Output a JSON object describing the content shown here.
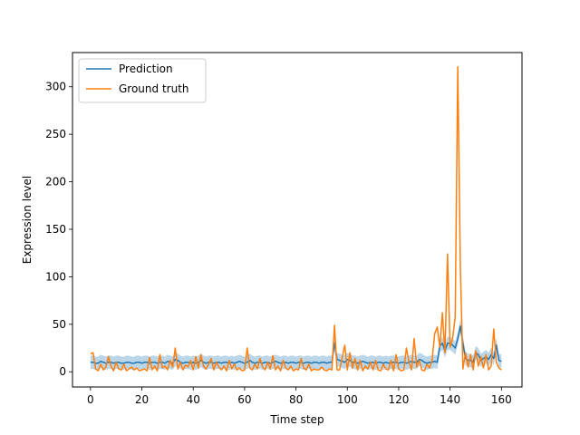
{
  "chart_data": {
    "type": "line",
    "title": "",
    "xlabel": "Time step",
    "ylabel": "Expression level",
    "xlim": [
      -7,
      168
    ],
    "ylim": [
      -16,
      336
    ],
    "xticks": [
      0,
      20,
      40,
      60,
      80,
      100,
      120,
      140,
      160
    ],
    "yticks": [
      0,
      50,
      100,
      150,
      200,
      250,
      300
    ],
    "grid": false,
    "legend": {
      "placement": "top-left",
      "entries": [
        "Prediction",
        "Ground truth"
      ]
    },
    "band": {
      "name": "",
      "color": "#1f77b4",
      "opacity": 0.3
    },
    "x": [
      0,
      1,
      2,
      3,
      4,
      5,
      6,
      7,
      8,
      9,
      10,
      11,
      12,
      13,
      14,
      15,
      16,
      17,
      18,
      19,
      20,
      21,
      22,
      23,
      24,
      25,
      26,
      27,
      28,
      29,
      30,
      31,
      32,
      33,
      34,
      35,
      36,
      37,
      38,
      39,
      40,
      41,
      42,
      43,
      44,
      45,
      46,
      47,
      48,
      49,
      50,
      51,
      52,
      53,
      54,
      55,
      56,
      57,
      58,
      59,
      60,
      61,
      62,
      63,
      64,
      65,
      66,
      67,
      68,
      69,
      70,
      71,
      72,
      73,
      74,
      75,
      76,
      77,
      78,
      79,
      80,
      81,
      82,
      83,
      84,
      85,
      86,
      87,
      88,
      89,
      90,
      91,
      92,
      93,
      94,
      95,
      96,
      97,
      98,
      99,
      100,
      101,
      102,
      103,
      104,
      105,
      106,
      107,
      108,
      109,
      110,
      111,
      112,
      113,
      114,
      115,
      116,
      117,
      118,
      119,
      120,
      121,
      122,
      123,
      124,
      125,
      126,
      127,
      128,
      129,
      130,
      131,
      132,
      133,
      134,
      135,
      136,
      137,
      138,
      139,
      140,
      141,
      142,
      143,
      144,
      145,
      146,
      147,
      148,
      149,
      150,
      151,
      152,
      153,
      154,
      155,
      156,
      157,
      158,
      159,
      160
    ],
    "series": [
      {
        "name": "Prediction",
        "color": "#1f77b4",
        "values": [
          10,
          10,
          9,
          9,
          11,
          10,
          9,
          10,
          10,
          9,
          10,
          10,
          9,
          9,
          10,
          10,
          9,
          9,
          10,
          10,
          9,
          10,
          10,
          9,
          10,
          10,
          9,
          10,
          10,
          9,
          11,
          10,
          9,
          13,
          12,
          10,
          9,
          10,
          10,
          9,
          10,
          9,
          10,
          12,
          10,
          9,
          10,
          10,
          9,
          10,
          10,
          9,
          10,
          10,
          9,
          10,
          9,
          10,
          11,
          10,
          9,
          10,
          12,
          10,
          9,
          10,
          10,
          9,
          10,
          10,
          9,
          10,
          11,
          10,
          9,
          10,
          10,
          9,
          10,
          10,
          9,
          10,
          10,
          9,
          10,
          10,
          9,
          10,
          10,
          9,
          10,
          10,
          9,
          10,
          10,
          30,
          13,
          12,
          11,
          10,
          13,
          12,
          10,
          10,
          9,
          10,
          11,
          10,
          9,
          10,
          10,
          9,
          10,
          10,
          9,
          10,
          9,
          10,
          10,
          10,
          9,
          10,
          10,
          9,
          10,
          11,
          10,
          10,
          13,
          12,
          10,
          9,
          10,
          10,
          11,
          10,
          27,
          30,
          22,
          30,
          30,
          28,
          25,
          35,
          48,
          30,
          14,
          12,
          12,
          10,
          20,
          18,
          12,
          14,
          16,
          13,
          18,
          14,
          28,
          12,
          11
        ],
        "upper": [
          17,
          17,
          16,
          16,
          18,
          17,
          16,
          17,
          17,
          16,
          17,
          17,
          16,
          16,
          17,
          17,
          16,
          16,
          17,
          17,
          16,
          17,
          17,
          16,
          17,
          17,
          16,
          17,
          17,
          16,
          18,
          17,
          16,
          20,
          19,
          17,
          16,
          17,
          17,
          16,
          17,
          16,
          17,
          19,
          17,
          16,
          17,
          17,
          16,
          17,
          17,
          16,
          17,
          17,
          16,
          17,
          16,
          17,
          18,
          17,
          16,
          17,
          19,
          17,
          16,
          17,
          17,
          16,
          17,
          17,
          16,
          17,
          18,
          17,
          16,
          17,
          17,
          16,
          17,
          17,
          16,
          17,
          17,
          16,
          17,
          17,
          16,
          17,
          17,
          16,
          17,
          17,
          16,
          17,
          17,
          37,
          20,
          19,
          18,
          17,
          20,
          19,
          17,
          17,
          16,
          17,
          18,
          17,
          16,
          17,
          17,
          16,
          17,
          17,
          16,
          17,
          16,
          17,
          17,
          17,
          16,
          17,
          17,
          16,
          17,
          18,
          17,
          17,
          20,
          19,
          17,
          16,
          17,
          17,
          18,
          17,
          34,
          37,
          29,
          37,
          37,
          35,
          32,
          42,
          55,
          37,
          21,
          19,
          19,
          17,
          27,
          25,
          19,
          21,
          23,
          20,
          25,
          21,
          35,
          19,
          18
        ],
        "lower": [
          3,
          3,
          2,
          2,
          4,
          3,
          2,
          3,
          3,
          2,
          3,
          3,
          2,
          2,
          3,
          3,
          2,
          2,
          3,
          3,
          2,
          3,
          3,
          2,
          3,
          3,
          2,
          3,
          3,
          2,
          4,
          3,
          2,
          6,
          5,
          3,
          2,
          3,
          3,
          2,
          3,
          2,
          3,
          5,
          3,
          2,
          3,
          3,
          2,
          3,
          3,
          2,
          3,
          3,
          2,
          3,
          2,
          3,
          4,
          3,
          2,
          3,
          5,
          3,
          2,
          3,
          3,
          2,
          3,
          3,
          2,
          3,
          4,
          3,
          2,
          3,
          3,
          2,
          3,
          3,
          2,
          3,
          3,
          2,
          3,
          3,
          2,
          3,
          3,
          2,
          3,
          3,
          2,
          3,
          3,
          23,
          6,
          5,
          4,
          3,
          6,
          5,
          3,
          3,
          2,
          3,
          4,
          3,
          2,
          3,
          3,
          2,
          3,
          3,
          2,
          3,
          2,
          3,
          3,
          3,
          2,
          3,
          3,
          2,
          3,
          4,
          3,
          3,
          6,
          5,
          3,
          2,
          3,
          3,
          4,
          3,
          20,
          23,
          15,
          23,
          23,
          21,
          18,
          28,
          41,
          23,
          7,
          5,
          5,
          3,
          13,
          11,
          5,
          7,
          9,
          6,
          11,
          7,
          21,
          5,
          4
        ]
      },
      {
        "name": "Ground truth",
        "color": "#ff7f0e",
        "values": [
          19,
          20,
          3,
          1,
          8,
          2,
          5,
          16,
          6,
          1,
          10,
          3,
          2,
          8,
          1,
          3,
          5,
          2,
          4,
          1,
          2,
          3,
          1,
          15,
          2,
          6,
          1,
          18,
          4,
          6,
          2,
          12,
          5,
          25,
          3,
          10,
          2,
          7,
          5,
          12,
          2,
          16,
          4,
          18,
          6,
          3,
          8,
          14,
          2,
          10,
          5,
          2,
          6,
          1,
          12,
          3,
          8,
          2,
          4,
          1,
          2,
          25,
          4,
          2,
          8,
          3,
          14,
          5,
          2,
          10,
          3,
          17,
          2,
          6,
          1,
          12,
          4,
          2,
          6,
          1,
          3,
          2,
          14,
          4,
          2,
          8,
          1,
          3,
          2,
          2,
          5,
          2,
          1,
          3,
          2,
          49,
          2,
          2,
          15,
          28,
          2,
          20,
          4,
          14,
          2,
          12,
          1,
          6,
          3,
          10,
          2,
          12,
          2,
          1,
          8,
          3,
          2,
          12,
          1,
          18,
          3,
          1,
          2,
          25,
          10,
          2,
          35,
          5,
          12,
          2,
          1,
          8,
          4,
          12,
          40,
          47,
          26,
          62,
          20,
          124,
          26,
          35,
          58,
          321,
          110,
          3,
          20,
          5,
          18,
          2,
          22,
          6,
          16,
          4,
          18,
          2,
          6,
          45,
          10,
          4,
          2
        ]
      }
    ]
  }
}
